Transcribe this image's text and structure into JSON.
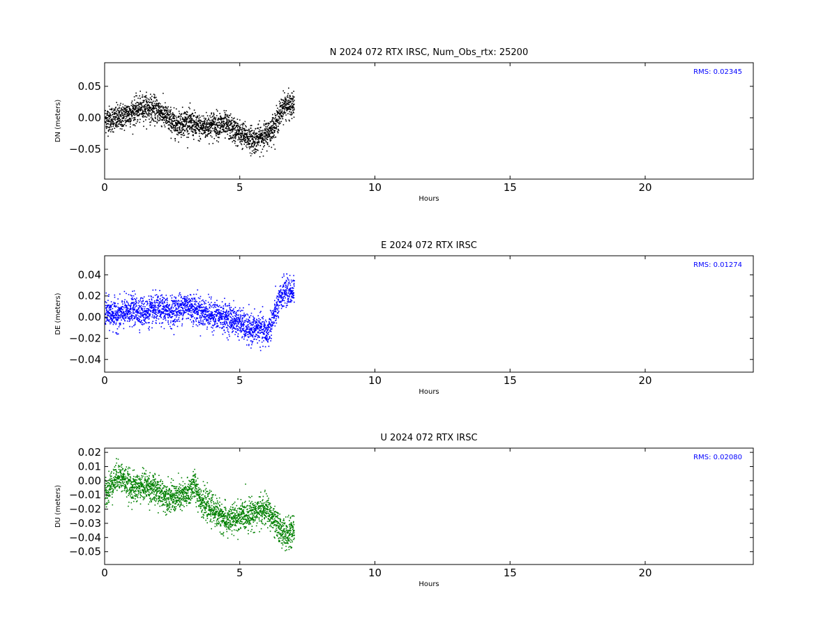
{
  "chart_data": [
    {
      "type": "scatter",
      "title": "N 2024 072 RTX  IRSC, Num_Obs_rtx: 25200",
      "xlabel": "Hours",
      "ylabel": "DN (meters)",
      "xlim": [
        0,
        24
      ],
      "ylim": [
        -0.0975,
        0.0875
      ],
      "xticks": [
        "0",
        "5",
        "10",
        "15",
        "20"
      ],
      "xtick_values": [
        0,
        5,
        10,
        15,
        20
      ],
      "yticks": [
        "0.05",
        "0.00",
        "−0.05"
      ],
      "ytick_values": [
        0.05,
        0.0,
        -0.05
      ],
      "grid": false,
      "color": "#000000",
      "rms_label": "RMS:  0.02345",
      "annotation_color": "#0000ff",
      "x_range": [
        0,
        7
      ],
      "spread": 0.012,
      "trend": [
        [
          0,
          -0.002
        ],
        [
          0.5,
          0.0
        ],
        [
          1,
          0.01
        ],
        [
          1.5,
          0.018
        ],
        [
          2,
          0.012
        ],
        [
          2.3,
          0.0
        ],
        [
          2.6,
          -0.01
        ],
        [
          3,
          -0.005
        ],
        [
          3.5,
          -0.015
        ],
        [
          4,
          -0.01
        ],
        [
          4.5,
          -0.012
        ],
        [
          5,
          -0.025
        ],
        [
          5.5,
          -0.035
        ],
        [
          6,
          -0.025
        ],
        [
          6.3,
          -0.01
        ],
        [
          6.6,
          0.02
        ],
        [
          7,
          0.02
        ]
      ]
    },
    {
      "type": "scatter",
      "title": "E 2024 072 RTX  IRSC",
      "xlabel": "Hours",
      "ylabel": "DE (meters)",
      "xlim": [
        0,
        24
      ],
      "ylim": [
        -0.052,
        0.058
      ],
      "xticks": [
        "0",
        "5",
        "10",
        "15",
        "20"
      ],
      "xtick_values": [
        0,
        5,
        10,
        15,
        20
      ],
      "yticks": [
        "0.04",
        "0.02",
        "0.00",
        "−0.02",
        "−0.04"
      ],
      "ytick_values": [
        0.04,
        0.02,
        0.0,
        -0.02,
        -0.04
      ],
      "grid": false,
      "color": "#0000ff",
      "rms_label": "RMS:  0.01274",
      "annotation_color": "#0000ff",
      "x_range": [
        0,
        7
      ],
      "spread": 0.008,
      "trend": [
        [
          0,
          0.005
        ],
        [
          0.5,
          0.002
        ],
        [
          1,
          0.008
        ],
        [
          1.5,
          0.005
        ],
        [
          2,
          0.008
        ],
        [
          2.5,
          0.006
        ],
        [
          3,
          0.012
        ],
        [
          3.5,
          0.006
        ],
        [
          4,
          0.002
        ],
        [
          4.5,
          0.0
        ],
        [
          5,
          -0.005
        ],
        [
          5.3,
          -0.012
        ],
        [
          5.7,
          -0.01
        ],
        [
          6,
          -0.015
        ],
        [
          6.3,
          0.005
        ],
        [
          6.6,
          0.025
        ],
        [
          7,
          0.025
        ]
      ]
    },
    {
      "type": "scatter",
      "title": "U 2024 072 RTX  IRSC",
      "xlabel": "Hours",
      "ylabel": "DU (meters)",
      "xlim": [
        0,
        24
      ],
      "ylim": [
        -0.059,
        0.023
      ],
      "xticks": [
        "0",
        "5",
        "10",
        "15",
        "20"
      ],
      "xtick_values": [
        0,
        5,
        10,
        15,
        20
      ],
      "yticks": [
        "0.02",
        "0.01",
        "0.00",
        "−0.01",
        "−0.02",
        "−0.03",
        "−0.04",
        "−0.05"
      ],
      "ytick_values": [
        0.02,
        0.01,
        0.0,
        -0.01,
        -0.02,
        -0.03,
        -0.04,
        -0.05
      ],
      "grid": false,
      "color": "#008000",
      "rms_label": "RMS:  0.02080",
      "annotation_color": "#0000ff",
      "x_range": [
        0,
        7
      ],
      "spread": 0.006,
      "trend": [
        [
          0,
          -0.008
        ],
        [
          0.5,
          0.005
        ],
        [
          1,
          -0.005
        ],
        [
          1.5,
          -0.003
        ],
        [
          2,
          -0.008
        ],
        [
          2.5,
          -0.012
        ],
        [
          3,
          -0.01
        ],
        [
          3.3,
          -0.002
        ],
        [
          3.6,
          -0.015
        ],
        [
          4,
          -0.02
        ],
        [
          4.5,
          -0.028
        ],
        [
          5,
          -0.025
        ],
        [
          5.5,
          -0.022
        ],
        [
          6,
          -0.02
        ],
        [
          6.3,
          -0.03
        ],
        [
          6.7,
          -0.038
        ],
        [
          7,
          -0.035
        ]
      ]
    }
  ]
}
